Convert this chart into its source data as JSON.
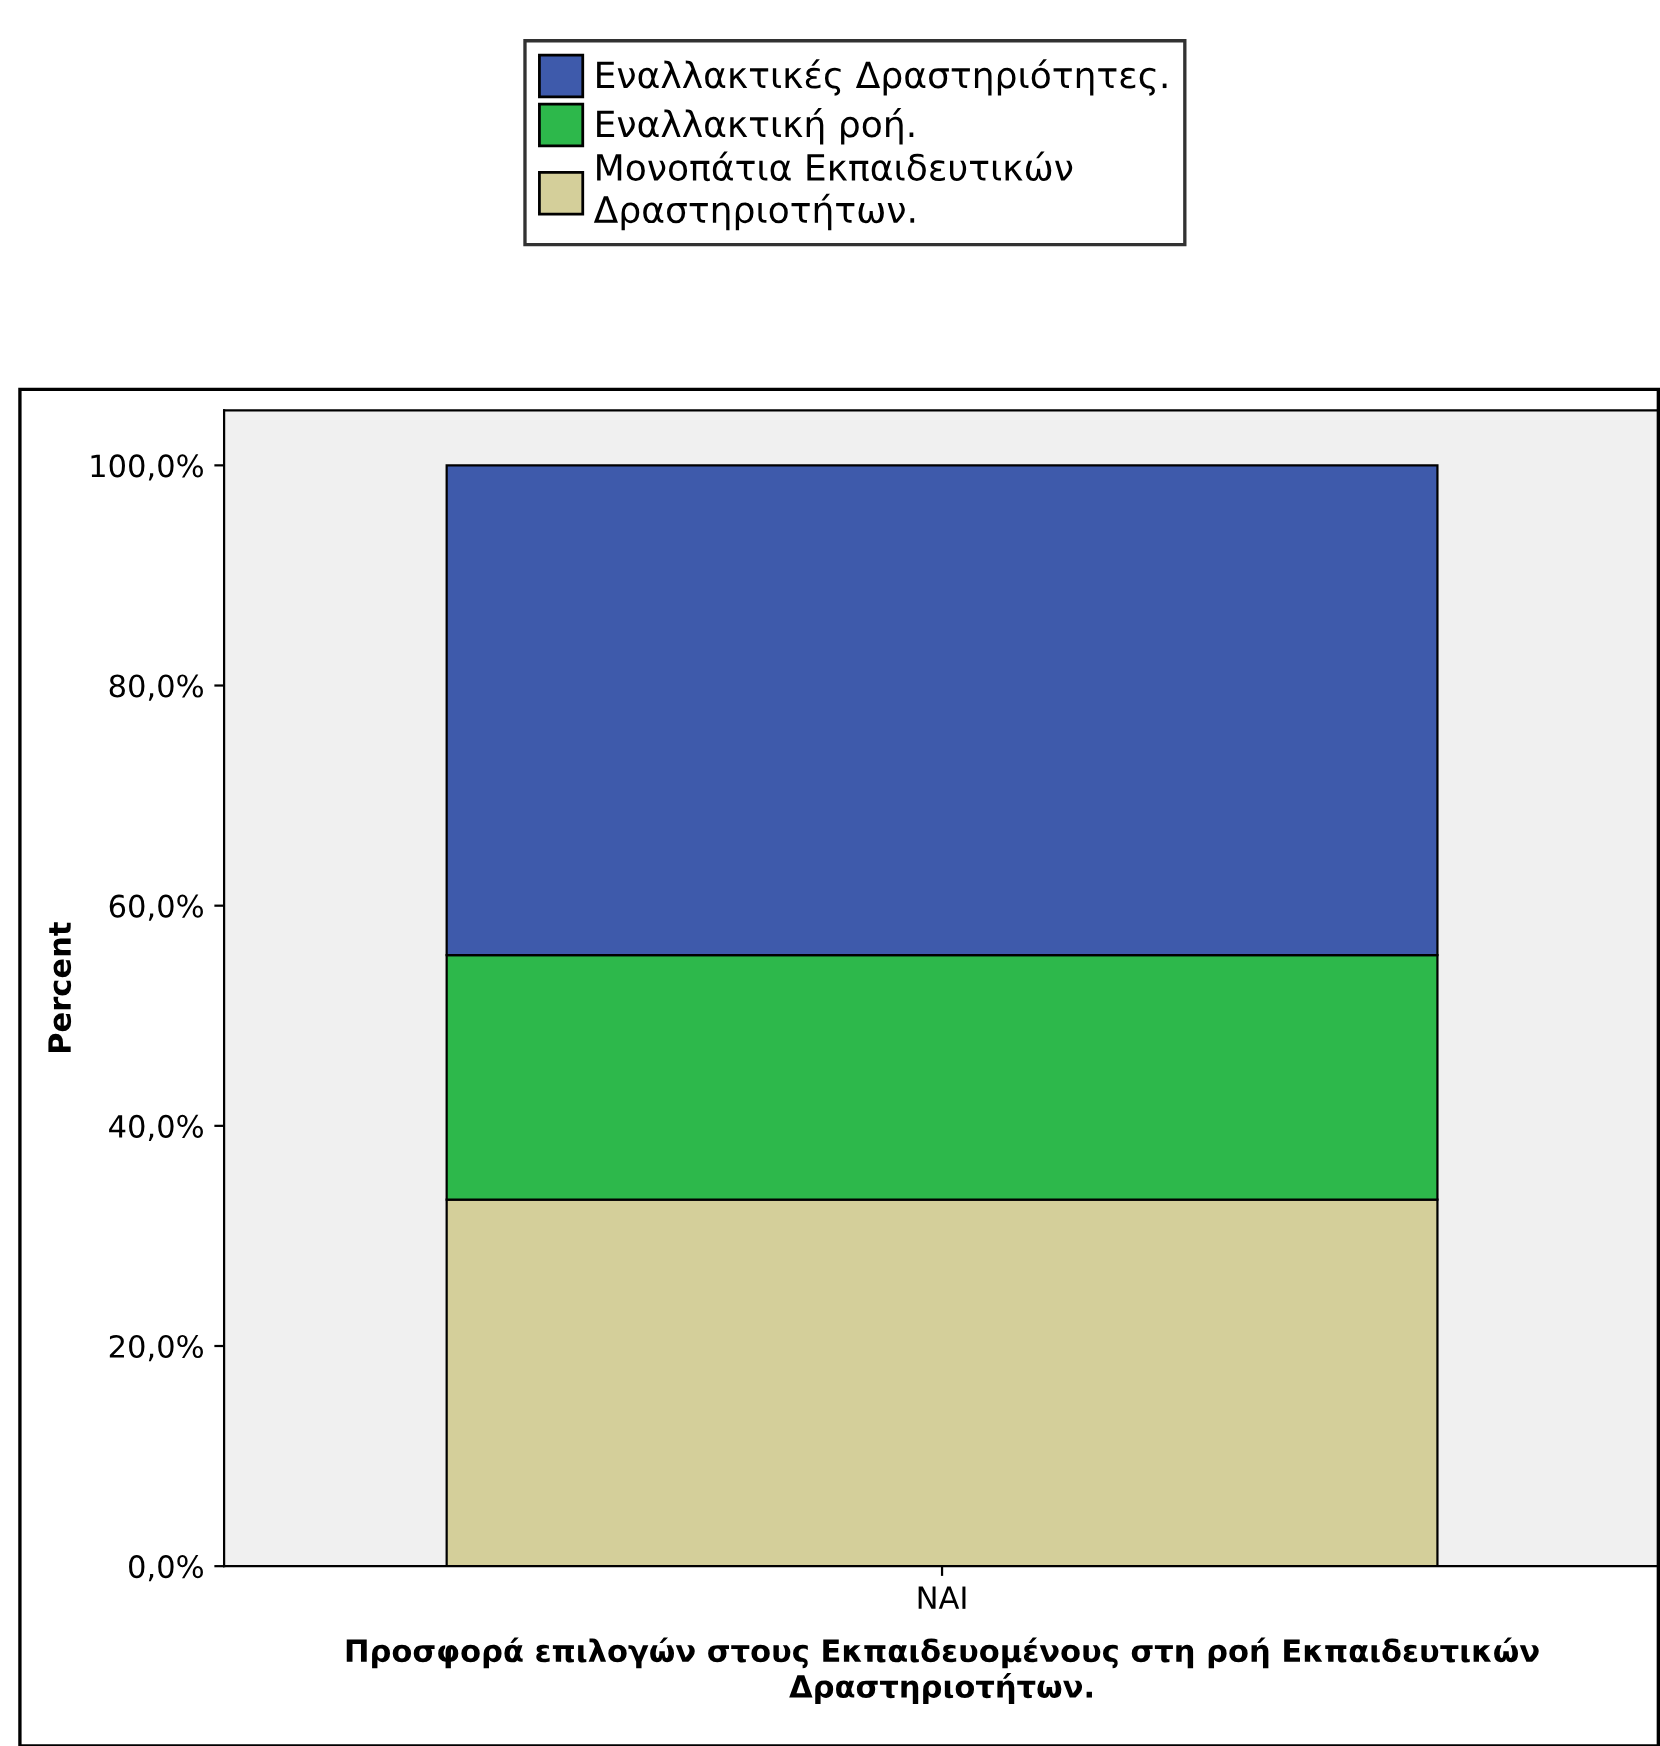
{
  "chart_data": {
    "type": "bar",
    "stacked": true,
    "categories": [
      "NAI"
    ],
    "series": [
      {
        "name": "Μονοπάτια Εκπαιδευτικών\nΔραστηριοτήτων.",
        "color": "#d4cf9a",
        "values": [
          33.3
        ]
      },
      {
        "name": "Εναλλακτική ροή.",
        "color": "#2db84b",
        "values": [
          22.2
        ]
      },
      {
        "name": "Εναλλακτικές Δραστηριότητες.",
        "color": "#3e5aab",
        "values": [
          44.5
        ]
      }
    ],
    "xlabel": "Προσφορά επιλογών στους Εκπαιδευομένους στη ροή Εκπαιδευτικών\nΔραστηριοτήτων.",
    "ylabel": "Percent",
    "ylim": [
      0,
      105
    ],
    "yticks": [
      {
        "value": 0,
        "label": "0,0%"
      },
      {
        "value": 20,
        "label": "20,0%"
      },
      {
        "value": 40,
        "label": "40,0%"
      },
      {
        "value": 60,
        "label": "60,0%"
      },
      {
        "value": 80,
        "label": "80,0%"
      },
      {
        "value": 100,
        "label": "100,0%"
      }
    ],
    "legend": "top"
  }
}
